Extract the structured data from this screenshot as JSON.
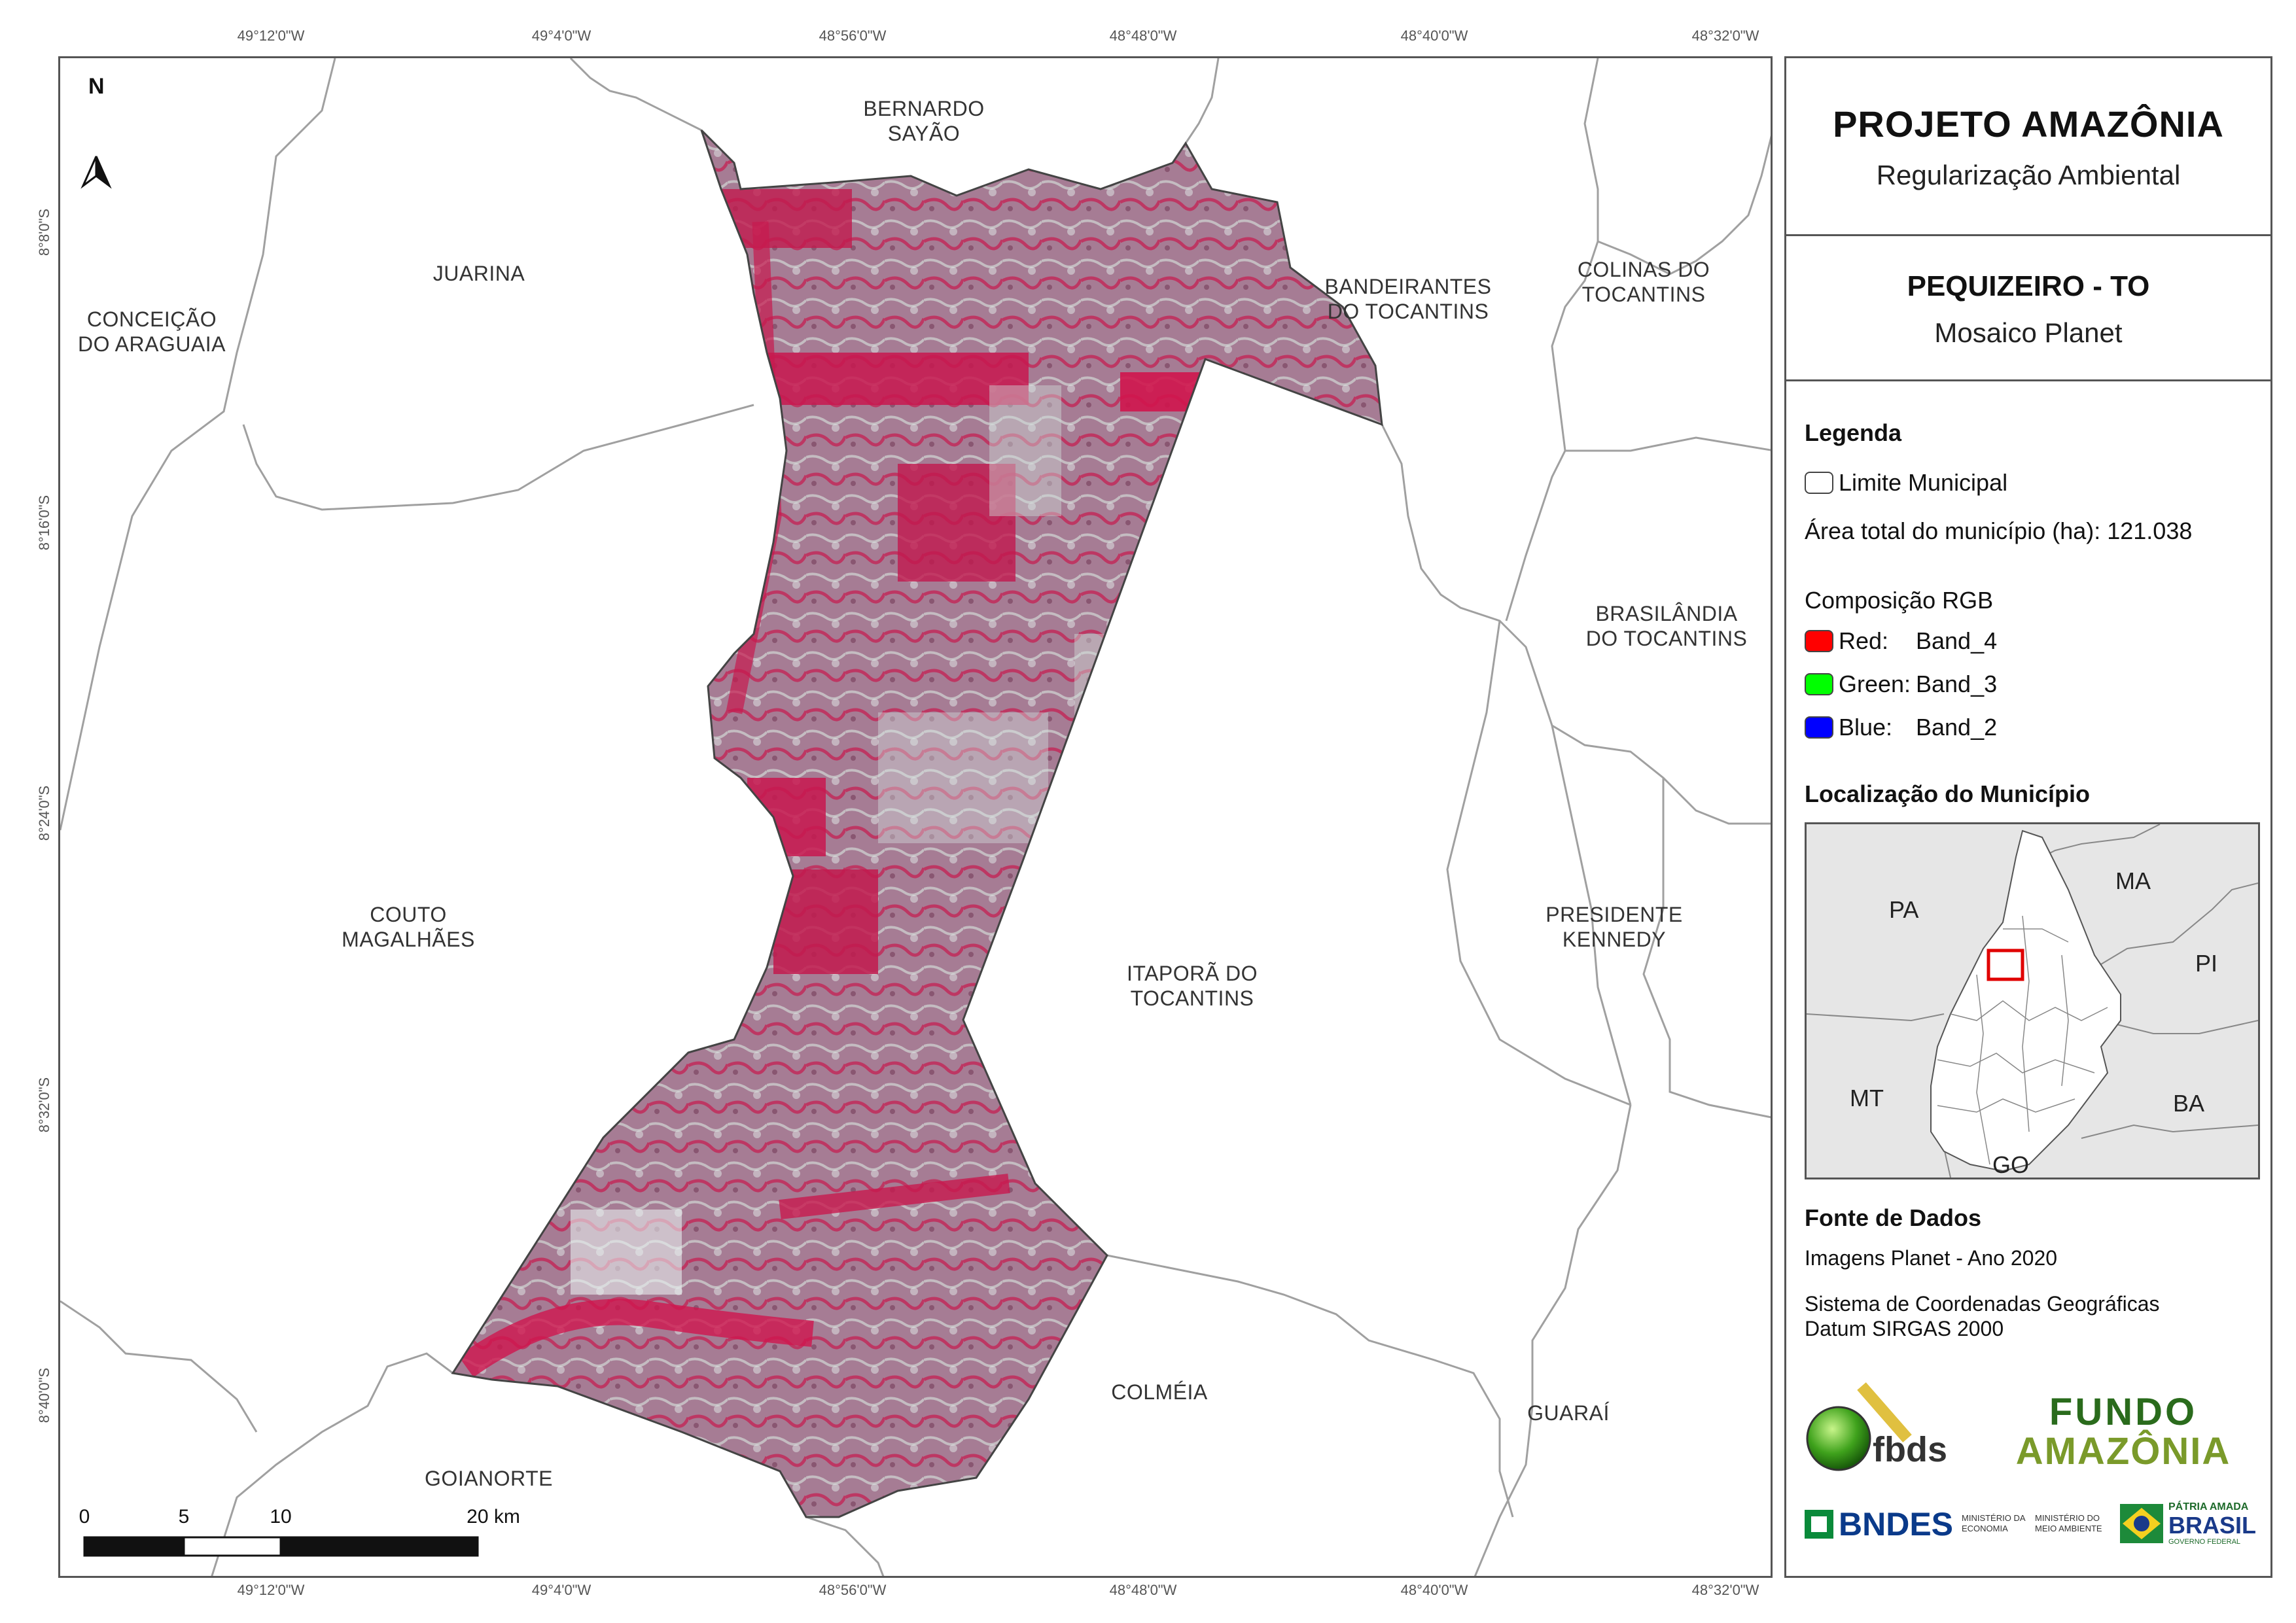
{
  "coordinates": {
    "top": [
      "49°12'0\"W",
      "49°4'0\"W",
      "48°56'0\"W",
      "48°48'0\"W",
      "48°40'0\"W",
      "48°32'0\"W"
    ],
    "bottom": [
      "49°12'0\"W",
      "49°4'0\"W",
      "48°56'0\"W",
      "48°48'0\"W",
      "48°40'0\"W",
      "48°32'0\"W"
    ],
    "left": [
      "8°8'0\"S",
      "8°16'0\"S",
      "8°24'0\"S",
      "8°32'0\"S",
      "8°40'0\"S"
    ]
  },
  "map": {
    "north_label": "N",
    "municipalities": {
      "bernardo_sayao": [
        "BERNARDO",
        "SAYÃO"
      ],
      "juarina": [
        "JUARINA"
      ],
      "conceicao": [
        "CONCEIÇÃO",
        "DO ARAGUAIA"
      ],
      "bandeirantes": [
        "BANDEIRANTES",
        "DO TOCANTINS"
      ],
      "colinas": [
        "COLINAS DO",
        "TOCANTINS"
      ],
      "brasilandia": [
        "BRASILÂNDIA",
        "DO TOCANTINS"
      ],
      "couto": [
        "COUTO",
        "MAGALHÃES"
      ],
      "itapora": [
        "ITAPORÃ DO",
        "TOCANTINS"
      ],
      "presidente": [
        "PRESIDENTE",
        "KENNEDY"
      ],
      "colmeia": [
        "COLMÉIA"
      ],
      "guarai": [
        "GUARAÍ"
      ],
      "goianorte": [
        "GOIANORTE"
      ]
    },
    "scale_bar": {
      "labels": [
        "0",
        "5",
        "10",
        "20 km"
      ]
    }
  },
  "panel": {
    "project_title": "PROJETO AMAZÔNIA",
    "project_subtitle": "Regularização Ambiental",
    "municipality_title": "PEQUIZEIRO - TO",
    "municipality_subtitle": "Mosaico Planet",
    "legend": {
      "title": "Legenda",
      "limit_label": "Limite Municipal",
      "area_label": "Área total do município (ha): 121.038",
      "rgb_title": "Composição RGB",
      "bands": [
        {
          "name": "Red:",
          "band": "Band_4",
          "color": "#ff0000"
        },
        {
          "name": "Green:",
          "band": "Band_3",
          "color": "#00ff00"
        },
        {
          "name": "Blue:",
          "band": "Band_2",
          "color": "#0000ff"
        }
      ]
    },
    "location": {
      "title": "Localização do Município",
      "states": [
        "PA",
        "MA",
        "PI",
        "MT",
        "BA",
        "GO"
      ]
    },
    "sources": {
      "title": "Fonte de Dados",
      "line1": "Imagens Planet - Ano 2020",
      "line2": "Sistema de Coordenadas Geográficas",
      "line3": "Datum SIRGAS 2000"
    },
    "logos": {
      "fbds": "fbds",
      "fundo_line1": "FUNDO",
      "fundo_line2": "AMAZÔNIA",
      "bndes": "BNDES",
      "min_econ": "MINISTÉRIO DA ECONOMIA",
      "min_amb": "MINISTÉRIO DO MEIO AMBIENTE",
      "patria_line1": "PÁTRIA AMADA",
      "patria_line2": "BRASIL",
      "patria_line3": "GOVERNO FEDERAL"
    }
  }
}
